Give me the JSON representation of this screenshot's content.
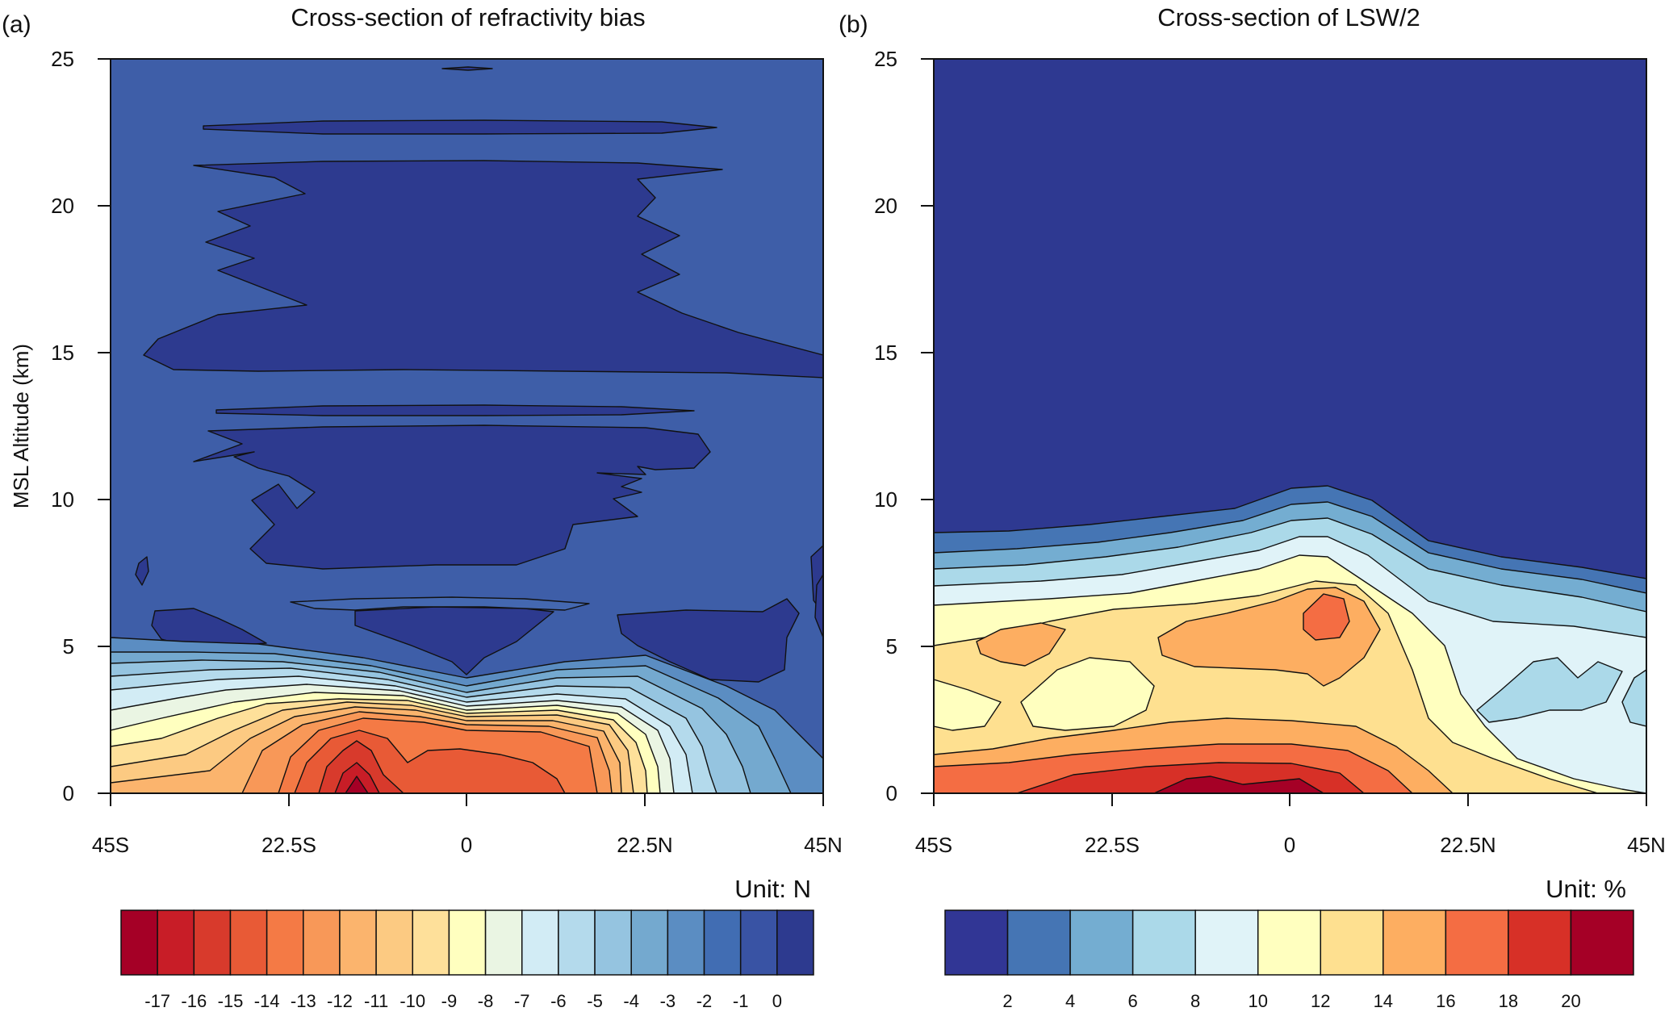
{
  "chart_data": [
    {
      "type": "heatmap",
      "panel_label": "(a)",
      "title": "Cross-section of refractivity bias",
      "ylabel": "MSL Altitude (km)",
      "xlabel": "",
      "x_ticks": [
        "45S",
        "22.5S",
        "0",
        "22.5N",
        "45N"
      ],
      "x_range": [
        -45,
        45
      ],
      "y_ticks": [
        "0",
        "5",
        "10",
        "15",
        "20",
        "25"
      ],
      "ylim": [
        0,
        25
      ],
      "colorbar": {
        "unit_label": "Unit: N",
        "tick_labels": [
          "-17",
          "-16",
          "-15",
          "-14",
          "-13",
          "-12",
          "-11",
          "-10",
          "-9",
          "-8",
          "-7",
          "-6",
          "-5",
          "-4",
          "-3",
          "-2",
          "-1",
          "0"
        ],
        "colors": [
          "#a50026",
          "#c81d27",
          "#d83a2c",
          "#e85a36",
          "#f47a45",
          "#f89858",
          "#fbb46d",
          "#fcca82",
          "#fee09a",
          "#ffffbf",
          "#eaf5e3",
          "#d2ecf5",
          "#b4daec",
          "#95c4e0",
          "#74a9cf",
          "#5b8dc2",
          "#416db3",
          "#3953a4",
          "#2d3a8f"
        ]
      },
      "background_color": "#3e5ea8",
      "regions": [
        {
          "band": "0 to 3 km, 15S to 12N",
          "range": "-17 to -11",
          "note": "minimum near 13S at surface"
        },
        {
          "band": "3 to 6 km",
          "range": "-9 to -2"
        },
        {
          "band": "8 to 12 km and 13.5 to 22 km",
          "range": "-1 to 0"
        },
        {
          "band": "above 22 km",
          "range": "-1"
        }
      ]
    },
    {
      "type": "heatmap",
      "panel_label": "(b)",
      "title": "Cross-section of LSW/2",
      "ylabel": "",
      "xlabel": "",
      "x_ticks": [
        "45S",
        "22.5S",
        "0",
        "22.5N",
        "45N"
      ],
      "x_range": [
        -45,
        45
      ],
      "y_ticks": [
        "0",
        "5",
        "10",
        "15",
        "20",
        "25"
      ],
      "ylim": [
        0,
        25
      ],
      "colorbar": {
        "unit_label": "Unit: %",
        "tick_labels": [
          "2",
          "4",
          "6",
          "8",
          "10",
          "12",
          "14",
          "16",
          "18",
          "20"
        ],
        "colors": [
          "#313695",
          "#4575b4",
          "#74add1",
          "#abd9e9",
          "#e0f3f8",
          "#ffffbf",
          "#fee090",
          "#fdae61",
          "#f46d43",
          "#d73027",
          "#a50026"
        ]
      },
      "background_color": "#2e3991",
      "regions": [
        {
          "band": "above about 9 km",
          "range": "below 2"
        },
        {
          "band": "6 to 10 km",
          "range": "2 to 10"
        },
        {
          "band": "1 to 6 km",
          "range": "10 to 18",
          "note": "maximum near 3N at 6 km"
        },
        {
          "band": "0 to 1 km, 15S to 5N",
          "range": "18 to 20"
        }
      ]
    }
  ]
}
